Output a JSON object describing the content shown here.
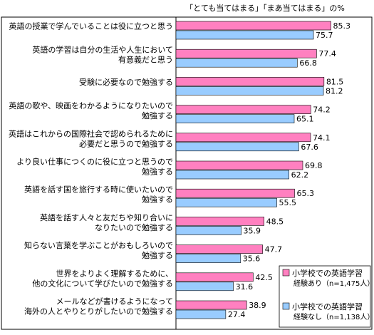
{
  "chart_data": {
    "type": "bar",
    "orientation": "horizontal",
    "title": "",
    "unit_note": "「とても当てはまる」「まあ当てはまる」の%",
    "categories": [
      [
        "英語の授業で学んでいることは役に立つと思う"
      ],
      [
        "英語の学習は自分の生活や人生において",
        "有意義だと思う"
      ],
      [
        "受験に必要なので勉強する"
      ],
      [
        "英語の歌や、映画をわかるようになりたいので",
        "勉強する"
      ],
      [
        "英語はこれからの国際社会で認められるために",
        "必要だと思うので勉強する"
      ],
      [
        "より良い仕事につくのに役に立つと思うので",
        "勉強する"
      ],
      [
        "英語を話す国を旅行する時に使いたいので",
        "勉強する"
      ],
      [
        "英語を話す人々と友だちや知り合いに",
        "なりたいので勉強する"
      ],
      [
        "知らない言葉を学ぶことがおもしろいので",
        "勉強する"
      ],
      [
        "世界をよりよく理解するために、",
        "他の文化について学びたいので勉強する"
      ],
      [
        "メールなどが書けるようになって",
        "海外の人とやりとりがしたいので勉強する"
      ]
    ],
    "series": [
      {
        "name": [
          "小学校での英語学習",
          "経験あり（n=1,475人）"
        ],
        "color": "#ff80c0",
        "values": [
          85.3,
          77.4,
          81.5,
          74.2,
          74.1,
          69.8,
          65.3,
          48.5,
          47.7,
          42.5,
          38.9
        ]
      },
      {
        "name": [
          "小学校での英語学習",
          "経験なし（n=1,138人）"
        ],
        "color": "#99ccff",
        "values": [
          75.7,
          66.8,
          81.2,
          65.1,
          67.6,
          62.2,
          55.5,
          35.9,
          35.6,
          31.6,
          27.4
        ]
      }
    ],
    "xlim": [
      0,
      100
    ],
    "grid": false,
    "legend": "bottom-right"
  }
}
